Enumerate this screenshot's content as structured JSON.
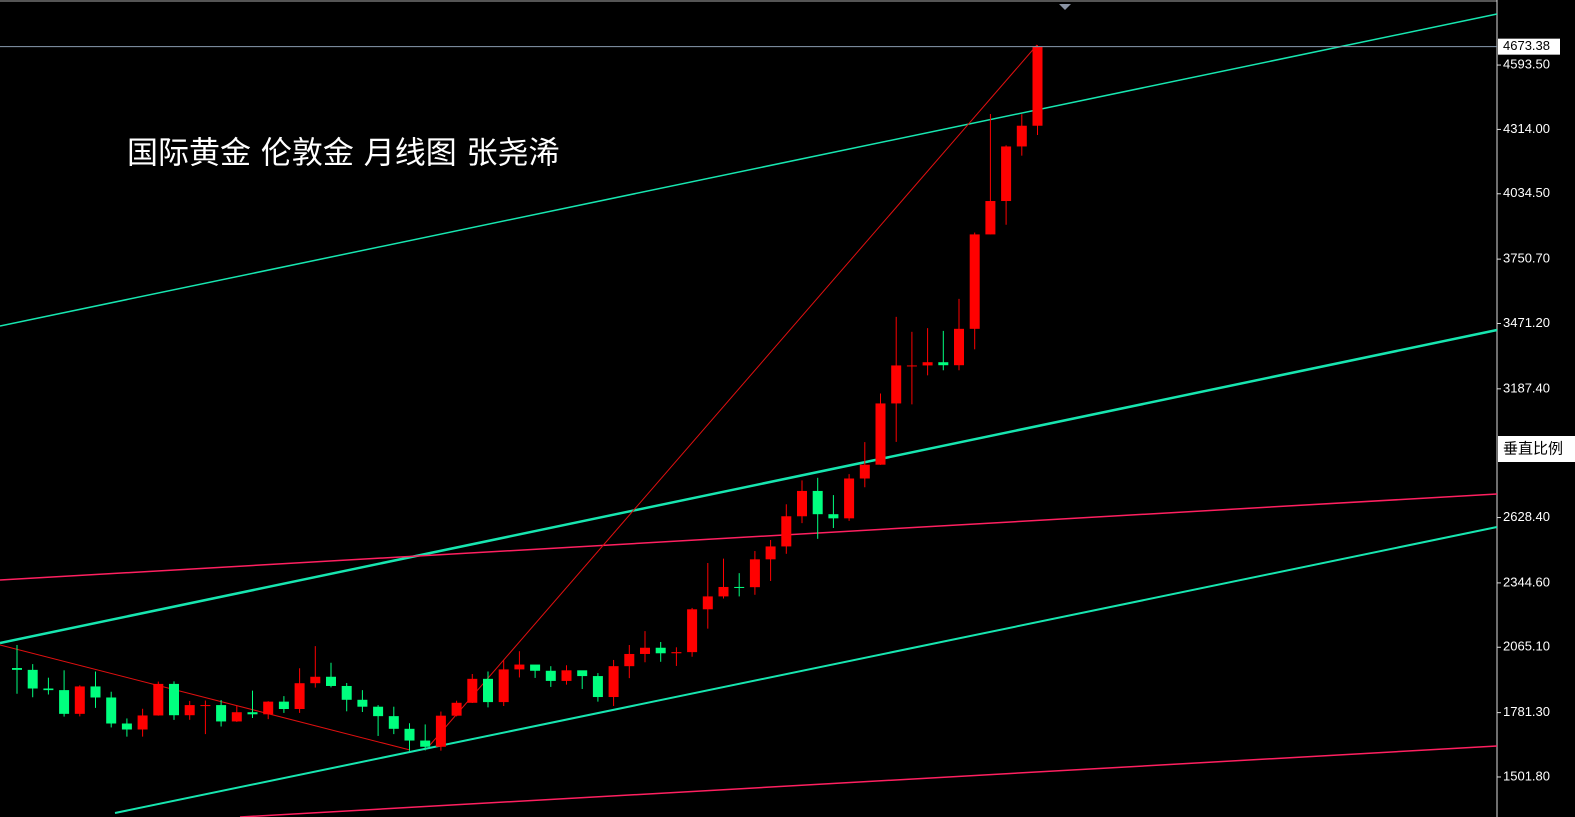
{
  "chart_data": {
    "type": "candlestick",
    "title": "国际黄金 伦敦金  月线图 张尧浠",
    "scale_button": "垂直比例",
    "up_color": "#ff0000",
    "down_color": "#00ff7f",
    "current_price": 4673.38,
    "open": [
      1975,
      1967,
      1886,
      1879,
      1776,
      1895,
      1847,
      1734,
      1708,
      1769,
      1906,
      1770,
      1814,
      1814,
      1743,
      1783,
      1774,
      1829,
      1797,
      1909,
      1937,
      1897,
      1837,
      1807,
      1766,
      1711,
      1660,
      1633,
      1768,
      1824,
      1928,
      1827,
      1969,
      1990,
      1963,
      1919,
      1965,
      1940,
      1849,
      1983,
      2036,
      2063,
      2039,
      2044,
      2230,
      2286,
      2327,
      2326,
      2447,
      2503,
      2634,
      2744,
      2643,
      2625,
      2798,
      2858,
      3124,
      3289,
      3289,
      3303,
      3290,
      3448,
      3858,
      4003,
      4240,
      4330
    ],
    "high": [
      2075,
      1992,
      1933,
      1965,
      1900,
      1960,
      1872,
      1756,
      1798,
      1916,
      1917,
      1832,
      1834,
      1836,
      1813,
      1877,
      1831,
      1853,
      1974,
      2070,
      1998,
      1910,
      1879,
      1814,
      1807,
      1735,
      1730,
      1786,
      1833,
      1949,
      1960,
      2009,
      2048,
      1985,
      1983,
      1987,
      1948,
      1953,
      2010,
      2075,
      2135,
      2088,
      2065,
      2236,
      2431,
      2450,
      2387,
      2483,
      2531,
      2686,
      2790,
      2801,
      2726,
      2817,
      2956,
      3167,
      3500,
      3435,
      3451,
      3439,
      3578,
      3866,
      4381,
      4245,
      4380,
      4680
    ],
    "low": [
      1863,
      1848,
      1860,
      1764,
      1765,
      1802,
      1717,
      1677,
      1677,
      1768,
      1750,
      1750,
      1688,
      1721,
      1741,
      1758,
      1753,
      1780,
      1780,
      1890,
      1891,
      1787,
      1784,
      1680,
      1688,
      1615,
      1617,
      1616,
      1765,
      1823,
      1804,
      1810,
      1934,
      1932,
      1893,
      1903,
      1884,
      1829,
      1810,
      1931,
      2000,
      2002,
      1984,
      2024,
      2146,
      2277,
      2286,
      2293,
      2353,
      2471,
      2604,
      2536,
      2583,
      2614,
      2760,
      2857,
      2957,
      3120,
      3246,
      3268,
      3268,
      3359,
      3858,
      3900,
      4200,
      4290
    ],
    "close": [
      1967,
      1886,
      1879,
      1776,
      1895,
      1847,
      1734,
      1708,
      1769,
      1906,
      1770,
      1814,
      1814,
      1743,
      1783,
      1774,
      1829,
      1797,
      1909,
      1937,
      1897,
      1837,
      1807,
      1766,
      1711,
      1660,
      1633,
      1768,
      1824,
      1928,
      1827,
      1969,
      1990,
      1963,
      1919,
      1965,
      1940,
      1849,
      1983,
      2036,
      2063,
      2039,
      2044,
      2230,
      2286,
      2327,
      2326,
      2447,
      2503,
      2634,
      2744,
      2643,
      2625,
      2798,
      2858,
      3124,
      3289,
      3289,
      3303,
      3290,
      3448,
      3858,
      4003,
      4240,
      4330,
      4673.38
    ],
    "ylim": [
      1328,
      4876
    ],
    "yticks": [
      {
        "value": 1501.8,
        "label": "1501.80"
      },
      {
        "value": 1781.3,
        "label": "1781.30"
      },
      {
        "value": 2065.1,
        "label": "2065.10"
      },
      {
        "value": 2344.6,
        "label": "2344.60"
      },
      {
        "value": 2628.4,
        "label": "2628.40"
      },
      {
        "value": 3187.4,
        "label": "3187.40"
      },
      {
        "value": 3471.2,
        "label": "3471.20"
      },
      {
        "value": 3750.7,
        "label": "3750.70"
      },
      {
        "value": 4034.5,
        "label": "4034.50"
      },
      {
        "value": 4314,
        "label": "4314.00"
      },
      {
        "value": 4593.5,
        "label": "4593.50"
      }
    ]
  }
}
